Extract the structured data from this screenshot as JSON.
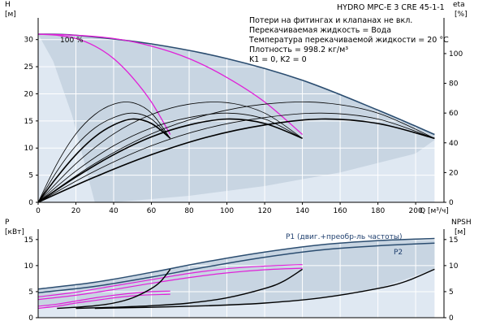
{
  "chart_data": [
    {
      "id": "upper",
      "type": "line",
      "title": "HYDRO MPC-E 3 CRE 45-1-1",
      "notes": [
        "Потери на фитингах и клапанах не вкл.",
        "Перекачиваемая жидкость = Вода",
        "Температура перекачиваемой жидкости = 20 °C",
        "Плотность = 998.2 кг/м³",
        "K1 = 0, K2 = 0"
      ],
      "ylabel_left": "H",
      "ylabel_left_unit": "[м]",
      "ylabel_right": "eta",
      "ylabel_right_unit": "[%]",
      "xlabel": "Q",
      "xlabel_unit": "[м³/ч]",
      "xlim": [
        0,
        215
      ],
      "ylim_left": [
        0,
        34
      ],
      "ylim_right": [
        0,
        124
      ],
      "x_ticks": [
        0,
        20,
        40,
        60,
        80,
        100,
        120,
        140,
        160,
        180,
        200
      ],
      "y_ticks_left": [
        0,
        5,
        10,
        15,
        20,
        25,
        30
      ],
      "y_ticks_right": [
        0,
        20,
        40,
        60,
        80,
        100
      ],
      "annotation": "100 %",
      "colors": {
        "area_light": "#dfe8f2",
        "area_dark": "#c5d3e0",
        "envelope": "#2b4d70",
        "magenta": "#e020d8",
        "black": "#000000"
      },
      "series": [
        {
          "kind": "max-envelope",
          "color": "#2b4d70",
          "x": [
            0,
            20,
            60,
            100,
            140,
            180,
            210
          ],
          "y": [
            31.0,
            30.8,
            29.2,
            26.5,
            22.5,
            17.0,
            12.5
          ]
        },
        {
          "kind": "magenta",
          "color": "#e020d8",
          "x": [
            0,
            10,
            20,
            30,
            40,
            50,
            60,
            70
          ],
          "y": [
            31.0,
            30.8,
            30.2,
            28.8,
            26.5,
            23.0,
            18.5,
            12.5
          ]
        },
        {
          "kind": "magenta",
          "color": "#e020d8",
          "x": [
            0,
            20,
            40,
            60,
            80,
            100,
            120,
            140
          ],
          "y": [
            31.0,
            30.8,
            30.2,
            28.8,
            26.5,
            23.0,
            18.5,
            12.5
          ]
        },
        {
          "kind": "eta-thin",
          "color": "#000000",
          "x": [
            0,
            10,
            20,
            30,
            40,
            50,
            60,
            70
          ],
          "y": [
            0,
            26,
            46,
            59,
            66,
            67,
            60,
            43
          ]
        },
        {
          "kind": "eta-thin",
          "color": "#000000",
          "x": [
            0,
            10,
            20,
            30,
            40,
            50,
            60,
            70
          ],
          "y": [
            0,
            21,
            38,
            50,
            57,
            60,
            56,
            43
          ]
        },
        {
          "kind": "eta-thick",
          "color": "#000000",
          "x": [
            0,
            10,
            20,
            30,
            40,
            50,
            60,
            70
          ],
          "y": [
            0,
            17,
            32,
            44,
            52,
            56,
            53,
            43
          ]
        },
        {
          "kind": "eta-thin",
          "color": "#000000",
          "x": [
            0,
            20,
            40,
            60,
            80,
            100,
            120,
            140
          ],
          "y": [
            0,
            26,
            46,
            59,
            66,
            67,
            60,
            43
          ]
        },
        {
          "kind": "eta-thin",
          "color": "#000000",
          "x": [
            0,
            20,
            40,
            60,
            80,
            100,
            120,
            140
          ],
          "y": [
            0,
            21,
            38,
            50,
            57,
            60,
            56,
            43
          ]
        },
        {
          "kind": "eta-thick",
          "color": "#000000",
          "x": [
            0,
            20,
            40,
            60,
            80,
            100,
            120,
            140
          ],
          "y": [
            0,
            17,
            32,
            44,
            52,
            56,
            53,
            43
          ]
        },
        {
          "kind": "eta-thin",
          "color": "#000000",
          "x": [
            0,
            30,
            60,
            90,
            120,
            150,
            180,
            210
          ],
          "y": [
            0,
            26,
            46,
            59,
            66,
            67,
            60,
            43
          ]
        },
        {
          "kind": "eta-thin",
          "color": "#000000",
          "x": [
            0,
            30,
            60,
            90,
            120,
            150,
            180,
            210
          ],
          "y": [
            0,
            21,
            38,
            50,
            57,
            60,
            56,
            43
          ]
        },
        {
          "kind": "eta-thick",
          "color": "#000000",
          "x": [
            0,
            30,
            60,
            90,
            120,
            150,
            180,
            210
          ],
          "y": [
            0,
            17,
            32,
            44,
            52,
            56,
            53,
            43
          ]
        }
      ]
    },
    {
      "id": "lower",
      "type": "line",
      "ylabel_left": "P",
      "ylabel_left_unit": "[кВт]",
      "ylabel_right": "NPSH",
      "ylabel_right_unit": "[м]",
      "xlim": [
        0,
        215
      ],
      "ylim_left": [
        0,
        17
      ],
      "ylim_right": [
        0,
        17
      ],
      "y_ticks_left": [
        0,
        5,
        10,
        15
      ],
      "y_ticks_right": [
        0,
        5,
        10,
        15
      ],
      "series_labels": {
        "p1": "P1 (двиг.+преобр-ль частоты)",
        "p2": "P2"
      },
      "series": [
        {
          "kind": "P1",
          "color": "#2b4d70",
          "x": [
            0,
            30,
            60,
            90,
            120,
            150,
            180,
            210
          ],
          "y": [
            5.5,
            6.8,
            8.7,
            10.8,
            12.6,
            14.0,
            14.8,
            15.2
          ]
        },
        {
          "kind": "P2",
          "color": "#2b4d70",
          "x": [
            0,
            30,
            60,
            90,
            120,
            150,
            180,
            210
          ],
          "y": [
            4.8,
            6.0,
            7.8,
            9.8,
            11.6,
            13.0,
            13.8,
            14.3
          ]
        },
        {
          "kind": "magenta",
          "color": "#e020d8",
          "x": [
            0,
            20,
            40,
            60,
            80,
            100,
            120,
            140
          ],
          "y": [
            4.0,
            4.9,
            6.1,
            7.3,
            8.5,
            9.4,
            9.9,
            10.2
          ]
        },
        {
          "kind": "magenta",
          "color": "#e020d8",
          "x": [
            0,
            20,
            40,
            60,
            80,
            100,
            120,
            140
          ],
          "y": [
            3.5,
            4.3,
            5.4,
            6.6,
            7.7,
            8.6,
            9.2,
            9.5
          ]
        },
        {
          "kind": "magenta",
          "color": "#e020d8",
          "x": [
            0,
            10,
            20,
            30,
            40,
            50,
            60,
            70
          ],
          "y": [
            2.2,
            2.6,
            3.2,
            3.8,
            4.3,
            4.7,
            5.0,
            5.1
          ]
        },
        {
          "kind": "magenta",
          "color": "#e020d8",
          "x": [
            0,
            10,
            20,
            30,
            40,
            50,
            60,
            70
          ],
          "y": [
            1.8,
            2.2,
            2.8,
            3.3,
            3.8,
            4.2,
            4.4,
            4.5
          ]
        },
        {
          "kind": "NPSH",
          "color": "#000000",
          "x": [
            10,
            20,
            30,
            40,
            50,
            60,
            65,
            70
          ],
          "y": [
            1.8,
            2.0,
            2.3,
            2.8,
            3.8,
            5.6,
            7.0,
            9.3
          ]
        },
        {
          "kind": "NPSH",
          "color": "#000000",
          "x": [
            20,
            40,
            60,
            80,
            100,
            120,
            130,
            140
          ],
          "y": [
            1.8,
            2.0,
            2.3,
            2.8,
            3.8,
            5.6,
            7.0,
            9.3
          ]
        },
        {
          "kind": "NPSH",
          "color": "#000000",
          "x": [
            30,
            60,
            90,
            120,
            150,
            180,
            195,
            210
          ],
          "y": [
            1.8,
            2.0,
            2.3,
            2.8,
            3.8,
            5.6,
            7.0,
            9.3
          ]
        }
      ]
    }
  ]
}
